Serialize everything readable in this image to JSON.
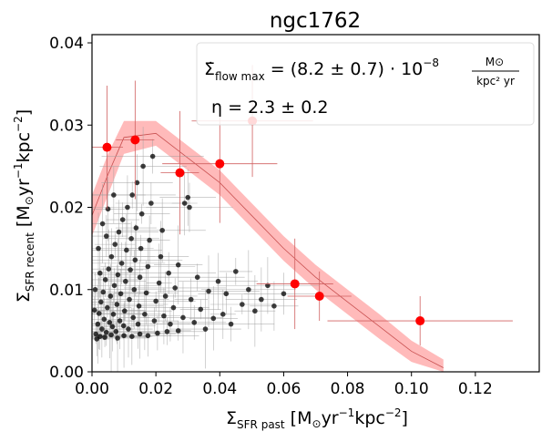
{
  "chart_data": {
    "type": "scatter",
    "title": "ngc1762",
    "xlabel": "Σ_SFR past [M⊙yr⁻¹kpc⁻²]",
    "ylabel": "Σ_SFR recent [M⊙yr⁻¹kpc⁻²]",
    "xlim": [
      0.0,
      0.14
    ],
    "ylim": [
      0.0,
      0.041
    ],
    "xticks": [
      "0.00",
      "0.02",
      "0.04",
      "0.06",
      "0.08",
      "0.10",
      "0.12"
    ],
    "yticks": [
      "0.00",
      "0.01",
      "0.02",
      "0.03",
      "0.04"
    ],
    "annotation": {
      "flow_label": "Σ̇ flow max = (8.2 ± 0.7) · 10⁻⁸ M⊙/(kpc² yr)",
      "eta_label": "η = 2.3 ± 0.2"
    },
    "colors": {
      "red_points": "#ff0000",
      "black_points": "#000000",
      "band_fill": "#ffb3b3",
      "band_line": "#c85050",
      "errorbar_red": "#d06060",
      "errorbar_gray": "#a0a0a0"
    },
    "model_band": {
      "x": [
        0.0,
        0.005,
        0.01,
        0.02,
        0.03,
        0.04,
        0.05,
        0.06,
        0.07,
        0.08,
        0.09,
        0.1,
        0.11
      ],
      "y_mid": [
        0.019,
        0.024,
        0.0285,
        0.029,
        0.026,
        0.023,
        0.019,
        0.015,
        0.0115,
        0.0085,
        0.0055,
        0.0025,
        0.0005
      ],
      "y_low": [
        0.0165,
        0.0215,
        0.0265,
        0.0275,
        0.0245,
        0.0215,
        0.0175,
        0.0135,
        0.01,
        0.007,
        0.004,
        0.0012,
        0.0
      ],
      "y_high": [
        0.0215,
        0.0265,
        0.0305,
        0.0305,
        0.0275,
        0.0245,
        0.0205,
        0.0165,
        0.013,
        0.01,
        0.007,
        0.0038,
        0.0015
      ]
    },
    "red_points": [
      {
        "x": 0.0047,
        "y": 0.0273,
        "xerr": 0.005,
        "yerr": 0.0075
      },
      {
        "x": 0.0135,
        "y": 0.0282,
        "xerr": 0.006,
        "yerr": 0.0072
      },
      {
        "x": 0.0275,
        "y": 0.0242,
        "xerr": 0.006,
        "yerr": 0.0075
      },
      {
        "x": 0.04,
        "y": 0.0253,
        "xerr": 0.018,
        "yerr": 0.0072
      },
      {
        "x": 0.0502,
        "y": 0.0305,
        "xerr": 0.019,
        "yerr": 0.0068
      },
      {
        "x": 0.0635,
        "y": 0.0107,
        "xerr": 0.012,
        "yerr": 0.0055
      },
      {
        "x": 0.0712,
        "y": 0.0092,
        "xerr": 0.01,
        "yerr": 0.003
      },
      {
        "x": 0.1027,
        "y": 0.0062,
        "xerr": 0.029,
        "yerr": 0.003
      }
    ],
    "black_points": [
      {
        "x": 0.0012,
        "y": 0.0046
      },
      {
        "x": 0.0018,
        "y": 0.0058
      },
      {
        "x": 0.0022,
        "y": 0.0071
      },
      {
        "x": 0.0028,
        "y": 0.0085
      },
      {
        "x": 0.0031,
        "y": 0.0052
      },
      {
        "x": 0.0035,
        "y": 0.0097
      },
      {
        "x": 0.0038,
        "y": 0.0064
      },
      {
        "x": 0.0042,
        "y": 0.0112
      },
      {
        "x": 0.0045,
        "y": 0.0048
      },
      {
        "x": 0.0048,
        "y": 0.0078
      },
      {
        "x": 0.0052,
        "y": 0.0125
      },
      {
        "x": 0.0055,
        "y": 0.006
      },
      {
        "x": 0.0058,
        "y": 0.0092
      },
      {
        "x": 0.0061,
        "y": 0.014
      },
      {
        "x": 0.0064,
        "y": 0.0055
      },
      {
        "x": 0.0067,
        "y": 0.007
      },
      {
        "x": 0.007,
        "y": 0.0105
      },
      {
        "x": 0.0072,
        "y": 0.0155
      },
      {
        "x": 0.0075,
        "y": 0.0049
      },
      {
        "x": 0.0078,
        "y": 0.0082
      },
      {
        "x": 0.0081,
        "y": 0.0118
      },
      {
        "x": 0.0084,
        "y": 0.017
      },
      {
        "x": 0.0087,
        "y": 0.0062
      },
      {
        "x": 0.009,
        "y": 0.0095
      },
      {
        "x": 0.0093,
        "y": 0.0132
      },
      {
        "x": 0.0096,
        "y": 0.0185
      },
      {
        "x": 0.0099,
        "y": 0.0056
      },
      {
        "x": 0.0102,
        "y": 0.0074
      },
      {
        "x": 0.0105,
        "y": 0.011
      },
      {
        "x": 0.0108,
        "y": 0.0148
      },
      {
        "x": 0.0111,
        "y": 0.02
      },
      {
        "x": 0.0114,
        "y": 0.0052
      },
      {
        "x": 0.0117,
        "y": 0.0088
      },
      {
        "x": 0.012,
        "y": 0.0124
      },
      {
        "x": 0.0123,
        "y": 0.0162
      },
      {
        "x": 0.0126,
        "y": 0.0215
      },
      {
        "x": 0.0129,
        "y": 0.0066
      },
      {
        "x": 0.0132,
        "y": 0.01
      },
      {
        "x": 0.0135,
        "y": 0.0136
      },
      {
        "x": 0.0138,
        "y": 0.0175
      },
      {
        "x": 0.0141,
        "y": 0.023
      },
      {
        "x": 0.0144,
        "y": 0.0058
      },
      {
        "x": 0.0147,
        "y": 0.008
      },
      {
        "x": 0.015,
        "y": 0.0115
      },
      {
        "x": 0.0153,
        "y": 0.015
      },
      {
        "x": 0.0156,
        "y": 0.0192
      },
      {
        "x": 0.016,
        "y": 0.025
      },
      {
        "x": 0.0165,
        "y": 0.007
      },
      {
        "x": 0.017,
        "y": 0.0096
      },
      {
        "x": 0.0175,
        "y": 0.0128
      },
      {
        "x": 0.018,
        "y": 0.016
      },
      {
        "x": 0.0185,
        "y": 0.0205
      },
      {
        "x": 0.019,
        "y": 0.0262
      },
      {
        "x": 0.0195,
        "y": 0.0062
      },
      {
        "x": 0.02,
        "y": 0.0086
      },
      {
        "x": 0.021,
        "y": 0.0108
      },
      {
        "x": 0.0215,
        "y": 0.014
      },
      {
        "x": 0.022,
        "y": 0.0172
      },
      {
        "x": 0.0225,
        "y": 0.0068
      },
      {
        "x": 0.023,
        "y": 0.0092
      },
      {
        "x": 0.024,
        "y": 0.012
      },
      {
        "x": 0.0245,
        "y": 0.0058
      },
      {
        "x": 0.0255,
        "y": 0.0078
      },
      {
        "x": 0.026,
        "y": 0.0102
      },
      {
        "x": 0.027,
        "y": 0.013
      },
      {
        "x": 0.0285,
        "y": 0.0066
      },
      {
        "x": 0.029,
        "y": 0.0205
      },
      {
        "x": 0.03,
        "y": 0.0212
      },
      {
        "x": 0.0305,
        "y": 0.02
      },
      {
        "x": 0.031,
        "y": 0.0088
      },
      {
        "x": 0.032,
        "y": 0.006
      },
      {
        "x": 0.033,
        "y": 0.0115
      },
      {
        "x": 0.034,
        "y": 0.0076
      },
      {
        "x": 0.0355,
        "y": 0.0052
      },
      {
        "x": 0.0365,
        "y": 0.0098
      },
      {
        "x": 0.038,
        "y": 0.0065
      },
      {
        "x": 0.0395,
        "y": 0.011
      },
      {
        "x": 0.041,
        "y": 0.007
      },
      {
        "x": 0.042,
        "y": 0.0095
      },
      {
        "x": 0.0435,
        "y": 0.0058
      },
      {
        "x": 0.045,
        "y": 0.0122
      },
      {
        "x": 0.047,
        "y": 0.0082
      },
      {
        "x": 0.049,
        "y": 0.01
      },
      {
        "x": 0.051,
        "y": 0.0074
      },
      {
        "x": 0.053,
        "y": 0.0088
      },
      {
        "x": 0.055,
        "y": 0.0105
      },
      {
        "x": 0.057,
        "y": 0.008
      },
      {
        "x": 0.06,
        "y": 0.0095
      },
      {
        "x": 0.0015,
        "y": 0.004
      },
      {
        "x": 0.0025,
        "y": 0.0043
      },
      {
        "x": 0.004,
        "y": 0.0042
      },
      {
        "x": 0.006,
        "y": 0.0045
      },
      {
        "x": 0.008,
        "y": 0.0041
      },
      {
        "x": 0.01,
        "y": 0.0044
      },
      {
        "x": 0.0125,
        "y": 0.0043
      },
      {
        "x": 0.015,
        "y": 0.0046
      },
      {
        "x": 0.0175,
        "y": 0.0044
      },
      {
        "x": 0.0205,
        "y": 0.0047
      },
      {
        "x": 0.0235,
        "y": 0.0049
      },
      {
        "x": 0.027,
        "y": 0.005
      },
      {
        "x": 0.0033,
        "y": 0.018
      },
      {
        "x": 0.002,
        "y": 0.015
      },
      {
        "x": 0.005,
        "y": 0.0198
      },
      {
        "x": 0.0068,
        "y": 0.0215
      },
      {
        "x": 0.0025,
        "y": 0.012
      },
      {
        "x": 0.0045,
        "y": 0.0165
      },
      {
        "x": 0.001,
        "y": 0.01
      },
      {
        "x": 0.0008,
        "y": 0.0075
      }
    ]
  }
}
